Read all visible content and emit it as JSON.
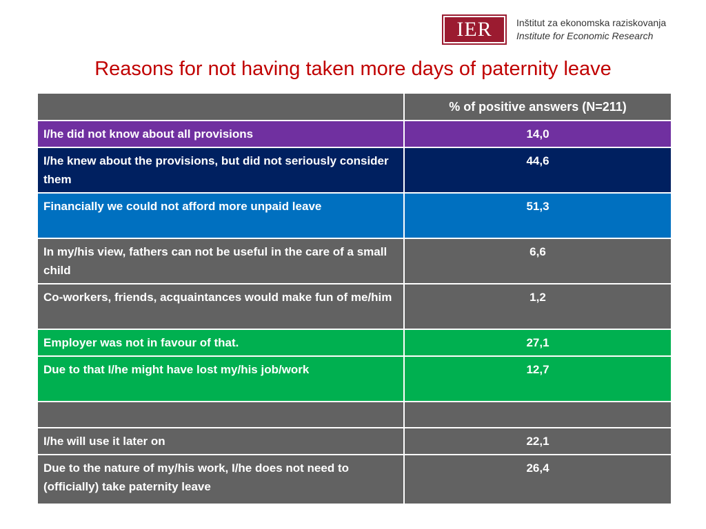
{
  "logo": {
    "abbr": "IER",
    "line1": "Inštitut za ekonomska raziskovanja",
    "line2": "Institute for Economic Research"
  },
  "title": "Reasons for not having taken more days of paternity leave",
  "table": {
    "header": [
      "",
      "% of positive answers (N=211)"
    ],
    "rows": [
      {
        "reason": "I/he did not know about all provisions",
        "value": "14,0",
        "color": "#7030a0"
      },
      {
        "reason": "I/he knew about the provisions, but did not seriously consider them",
        "value": "44,6",
        "color": "#002060"
      },
      {
        "reason": "Financially we could not afford more unpaid leave",
        "value": "51,3",
        "color": "#0070c0"
      },
      {
        "reason": "In my/his view, fathers can not be useful in the care of a small child",
        "value": "6,6",
        "color": "#626262"
      },
      {
        "reason": "Co-workers, friends, acquaintances would make fun of me/him",
        "value": "1,2",
        "color": "#626262"
      },
      {
        "reason": "Employer was not in favour of that.",
        "value": "27,1",
        "color": "#00b050"
      },
      {
        "reason": "Due to that I/he might have lost my/his job/work",
        "value": "12,7",
        "color": "#00b050"
      },
      {
        "reason": "",
        "value": "",
        "color": "#626262"
      },
      {
        "reason": "I/he will use it later on",
        "value": "22,1",
        "color": "#626262"
      },
      {
        "reason": "Due to the nature of my/his work, I/he does not need to (officially) take paternity leave",
        "value": "26,4",
        "color": "#626262"
      }
    ]
  }
}
